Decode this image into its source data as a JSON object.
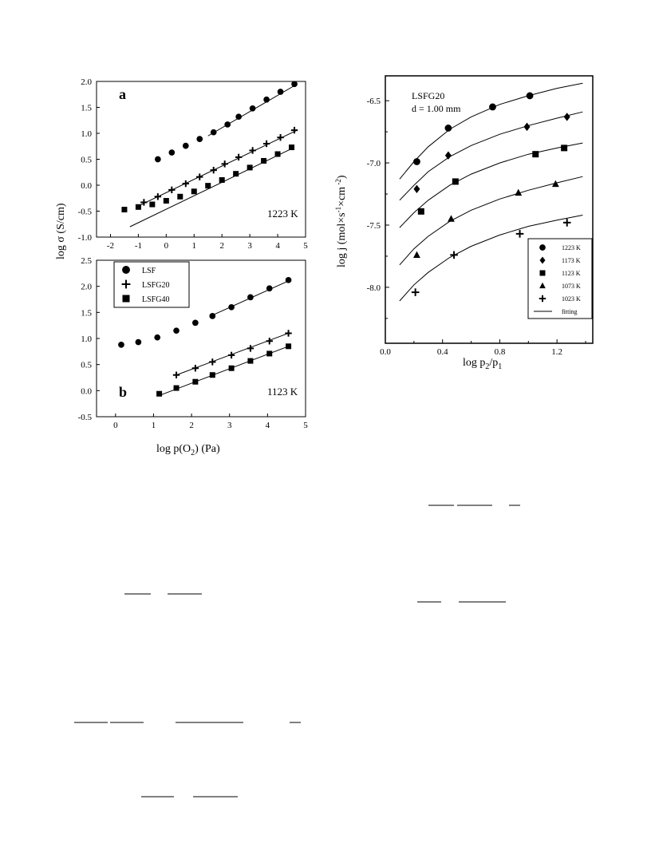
{
  "chart_data": [
    {
      "id": "a",
      "type": "scatter",
      "panel_label": "a",
      "temperature": "1223 K",
      "ylabel": "log σ  (S/cm)",
      "xlim": [
        -2.5,
        5
      ],
      "ylim": [
        -1.0,
        2.0
      ],
      "xticks": [
        "-2",
        "-1",
        "0",
        "1",
        "2",
        "3",
        "4",
        "5"
      ],
      "yticks": [
        "-1.0",
        "-0.5",
        "0.0",
        "0.5",
        "1.0",
        "1.5",
        "2.0"
      ],
      "series": [
        {
          "name": "LSF",
          "marker": "circle",
          "x": [
            -0.3,
            0.2,
            0.7,
            1.2,
            1.7,
            2.2,
            2.6,
            3.1,
            3.6,
            4.1,
            4.6
          ],
          "y": [
            0.5,
            0.63,
            0.76,
            0.89,
            1.02,
            1.17,
            1.32,
            1.48,
            1.65,
            1.8,
            1.95
          ],
          "fit": [
            [
              1.5,
              0.95
            ],
            [
              4.7,
              1.95
            ]
          ]
        },
        {
          "name": "LSFG20",
          "marker": "plus",
          "x": [
            -0.8,
            -0.3,
            0.2,
            0.7,
            1.2,
            1.7,
            2.1,
            2.6,
            3.1,
            3.6,
            4.1,
            4.6
          ],
          "y": [
            -0.33,
            -0.22,
            -0.09,
            0.03,
            0.16,
            0.29,
            0.41,
            0.54,
            0.67,
            0.8,
            0.92,
            1.06
          ],
          "fit": [
            [
              -1.0,
              -0.4
            ],
            [
              4.7,
              1.06
            ]
          ]
        },
        {
          "name": "LSFG40",
          "marker": "square",
          "x": [
            -1.5,
            -1.0,
            -0.5,
            0.0,
            0.5,
            1.0,
            1.5,
            2.0,
            2.5,
            3.0,
            3.5,
            4.0,
            4.5
          ],
          "y": [
            -0.47,
            -0.42,
            -0.37,
            -0.3,
            -0.22,
            -0.12,
            -0.01,
            0.1,
            0.22,
            0.34,
            0.47,
            0.6,
            0.73
          ],
          "fit": [
            [
              -1.3,
              -0.8
            ],
            [
              4.6,
              0.73
            ]
          ]
        }
      ]
    },
    {
      "id": "b",
      "type": "scatter",
      "panel_label": "b",
      "temperature": "1123 K",
      "xlabel_parts": [
        "log p(O",
        "2",
        ") (Pa)"
      ],
      "xlim": [
        -0.5,
        5
      ],
      "ylim": [
        -0.5,
        2.5
      ],
      "xticks": [
        "0",
        "1",
        "2",
        "3",
        "4",
        "5"
      ],
      "yticks": [
        "-0.5",
        "0.0",
        "0.5",
        "1.0",
        "1.5",
        "2.0",
        "2.5"
      ],
      "legend": {
        "position": "top-left",
        "items": [
          "LSF",
          "LSFG20",
          "LSFG40"
        ]
      },
      "series": [
        {
          "name": "LSF",
          "marker": "circle",
          "x": [
            0.15,
            0.6,
            1.1,
            1.6,
            2.1,
            2.55,
            3.05,
            3.55,
            4.05,
            4.55
          ],
          "y": [
            0.88,
            0.93,
            1.02,
            1.15,
            1.3,
            1.43,
            1.6,
            1.79,
            1.96,
            2.12
          ],
          "fit": [
            [
              2.5,
              1.43
            ],
            [
              4.6,
              2.12
            ]
          ]
        },
        {
          "name": "LSFG20",
          "marker": "plus",
          "x": [
            1.6,
            2.1,
            2.55,
            3.05,
            3.55,
            4.05,
            4.55
          ],
          "y": [
            0.3,
            0.43,
            0.55,
            0.68,
            0.81,
            0.95,
            1.1
          ],
          "fit": [
            [
              1.6,
              0.3
            ],
            [
              4.55,
              1.1
            ]
          ]
        },
        {
          "name": "LSFG40",
          "marker": "square",
          "x": [
            1.15,
            1.6,
            2.1,
            2.55,
            3.05,
            3.55,
            4.05,
            4.55
          ],
          "y": [
            -0.06,
            0.05,
            0.17,
            0.3,
            0.43,
            0.57,
            0.71,
            0.85
          ],
          "fit": [
            [
              1.2,
              -0.08
            ],
            [
              4.55,
              0.85
            ]
          ]
        }
      ]
    },
    {
      "id": "c",
      "type": "scatter",
      "annotation_line1": "LSFG20",
      "annotation_line2": "d = 1.00 mm",
      "ylabel_parts": [
        "log j  (mol×s",
        "-1",
        "×cm",
        " -2",
        ")"
      ],
      "xlabel_parts": [
        "log  p",
        "2",
        "/p",
        "1"
      ],
      "xlim": [
        0.0,
        1.45
      ],
      "ylim": [
        -8.45,
        -6.3
      ],
      "xticks": [
        "0.0",
        "0.4",
        "0.8",
        "1.2"
      ],
      "yticks": [
        "-6.5",
        "-7.0",
        "-7.5",
        "-8.0"
      ],
      "legend": {
        "position": "bottom-right",
        "items": [
          "1223 K",
          "1173 K",
          "1123 K",
          "1073 K",
          "1023 K",
          "fitting"
        ]
      },
      "series": [
        {
          "name": "1223 K",
          "marker": "circle",
          "x": [
            0.22,
            0.44,
            0.75,
            1.01
          ],
          "y": [
            -6.99,
            -6.72,
            -6.55,
            -6.46
          ],
          "curve": [
            [
              0.1,
              -7.13
            ],
            [
              0.2,
              -6.99
            ],
            [
              0.3,
              -6.87
            ],
            [
              0.45,
              -6.73
            ],
            [
              0.6,
              -6.63
            ],
            [
              0.8,
              -6.53
            ],
            [
              1.0,
              -6.46
            ],
            [
              1.2,
              -6.4
            ],
            [
              1.38,
              -6.36
            ]
          ]
        },
        {
          "name": "1173 K",
          "marker": "diamond",
          "x": [
            0.22,
            0.44,
            0.99,
            1.27
          ],
          "y": [
            -7.21,
            -6.94,
            -6.71,
            -6.63
          ],
          "curve": [
            [
              0.1,
              -7.3
            ],
            [
              0.2,
              -7.18
            ],
            [
              0.3,
              -7.07
            ],
            [
              0.45,
              -6.95
            ],
            [
              0.6,
              -6.86
            ],
            [
              0.8,
              -6.77
            ],
            [
              1.0,
              -6.7
            ],
            [
              1.2,
              -6.64
            ],
            [
              1.38,
              -6.59
            ]
          ]
        },
        {
          "name": "1123 K",
          "marker": "square",
          "x": [
            0.25,
            0.49,
            1.05,
            1.25
          ],
          "y": [
            -7.39,
            -7.15,
            -6.93,
            -6.88
          ],
          "curve": [
            [
              0.1,
              -7.52
            ],
            [
              0.2,
              -7.4
            ],
            [
              0.3,
              -7.3
            ],
            [
              0.45,
              -7.18
            ],
            [
              0.6,
              -7.09
            ],
            [
              0.8,
              -7.0
            ],
            [
              1.0,
              -6.93
            ],
            [
              1.2,
              -6.88
            ],
            [
              1.38,
              -6.84
            ]
          ]
        },
        {
          "name": "1073 K",
          "marker": "triangle",
          "x": [
            0.22,
            0.46,
            0.93,
            1.19
          ],
          "y": [
            -7.74,
            -7.45,
            -7.24,
            -7.17
          ],
          "curve": [
            [
              0.1,
              -7.82
            ],
            [
              0.2,
              -7.69
            ],
            [
              0.3,
              -7.59
            ],
            [
              0.45,
              -7.47
            ],
            [
              0.6,
              -7.38
            ],
            [
              0.8,
              -7.29
            ],
            [
              1.0,
              -7.22
            ],
            [
              1.2,
              -7.16
            ],
            [
              1.38,
              -7.11
            ]
          ]
        },
        {
          "name": "1023 K",
          "marker": "plus",
          "x": [
            0.21,
            0.48,
            0.94,
            1.27
          ],
          "y": [
            -8.04,
            -7.74,
            -7.57,
            -7.48
          ],
          "curve": [
            [
              0.1,
              -8.11
            ],
            [
              0.2,
              -7.98
            ],
            [
              0.3,
              -7.88
            ],
            [
              0.45,
              -7.76
            ],
            [
              0.6,
              -7.67
            ],
            [
              0.8,
              -7.58
            ],
            [
              1.0,
              -7.51
            ],
            [
              1.2,
              -7.46
            ],
            [
              1.38,
              -7.42
            ]
          ]
        }
      ]
    }
  ]
}
